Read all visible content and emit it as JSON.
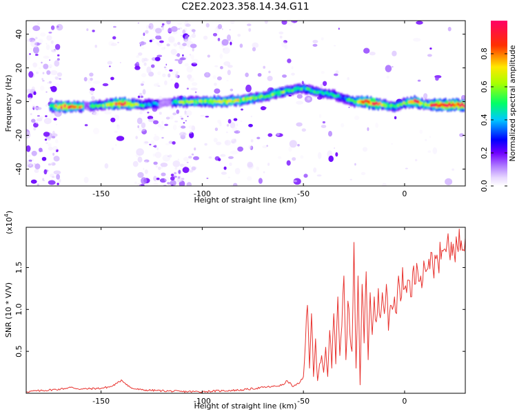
{
  "title": "C2E2.2023.358.14.34.G11",
  "colors": {
    "snr_line": "#e8322e",
    "spectrogram_base": "#9d5cf0",
    "colormap": [
      "#ffffff",
      "#e8d8ff",
      "#b07cff",
      "#7000ff",
      "#0000ff",
      "#00c8ff",
      "#00ff66",
      "#a8ff00",
      "#ffe800",
      "#ff3000",
      "#ff0066"
    ]
  },
  "chart_data": [
    {
      "type": "heatmap",
      "xlabel": "Height of straight line (km)",
      "ylabel": "Frequency (Hz)",
      "xlim": [
        -187,
        30
      ],
      "ylim": [
        -50,
        48
      ],
      "x_ticks": [
        -150,
        -100,
        -50,
        0
      ],
      "y_ticks": [
        -40,
        -20,
        0,
        20,
        40
      ],
      "grid": false,
      "colorbar": {
        "label": "Normalized spectral amplitude",
        "range": [
          0.0,
          1.0
        ],
        "ticks": [
          "0.0",
          "0.2",
          "0.4",
          "0.6",
          "0.8"
        ],
        "tick_values": [
          0.0,
          0.2,
          0.4,
          0.6,
          0.8
        ]
      },
      "ridge": {
        "x": [
          -185,
          -176,
          -170,
          -165,
          -160,
          -150,
          -140,
          -130,
          -120,
          -110,
          -100,
          -90,
          -80,
          -70,
          -60,
          -55,
          -50,
          -45,
          -40,
          -35,
          -30,
          -25,
          -20,
          -15,
          -10,
          -5,
          0,
          5,
          10,
          15,
          20,
          25,
          30
        ],
        "frequency": [
          -3,
          -3,
          -3,
          -3,
          -3,
          -2,
          -1,
          -2,
          -1,
          0,
          0,
          0,
          1,
          3,
          6,
          7,
          8,
          6,
          5,
          4,
          2,
          0,
          0,
          -1,
          -2,
          -3,
          -1,
          0,
          -2,
          -2,
          -2,
          -2,
          -2
        ],
        "amplitude": [
          0.2,
          0.5,
          0.85,
          0.85,
          0.7,
          0.5,
          0.95,
          0.5,
          0.4,
          0.6,
          0.6,
          0.7,
          0.65,
          0.6,
          0.6,
          0.5,
          0.5,
          0.5,
          0.45,
          0.5,
          0.4,
          0.6,
          0.85,
          0.95,
          0.6,
          0.55,
          0.6,
          0.9,
          0.6,
          0.95,
          0.95,
          0.95,
          0.95
        ]
      }
    },
    {
      "type": "line",
      "xlabel": "Height of straight line (km)",
      "ylabel": "SNR (10 * V/V)",
      "y_exponent_label": "(x10",
      "y_exponent_power": "4",
      "y_exponent_close": ")",
      "y_multiplier": 10000,
      "xlim": [
        -187,
        30
      ],
      "ylim": [
        0,
        1.98
      ],
      "x_ticks": [
        -150,
        -100,
        -50,
        0
      ],
      "y_ticks": [
        0.5,
        1.0,
        1.5
      ],
      "y_tick_labels": [
        "0.5",
        "1.0",
        "1.5"
      ],
      "grid": false,
      "series": [
        {
          "x": [
            -187,
            -180,
            -170,
            -165,
            -160,
            -150,
            -145,
            -142,
            -140,
            -138,
            -135,
            -130,
            -120,
            -110,
            -100,
            -90,
            -80,
            -70,
            -65,
            -60,
            -58,
            -55,
            -52,
            -50,
            -48,
            -47,
            -46,
            -45,
            -44,
            -43,
            -42,
            -41,
            -40,
            -39,
            -38,
            -37,
            -36,
            -35,
            -34,
            -33,
            -32,
            -31,
            -30,
            -29,
            -28,
            -27,
            -26,
            -25,
            -24,
            -23,
            -22,
            -21,
            -20,
            -19,
            -18,
            -17,
            -16,
            -15,
            -14,
            -13,
            -12,
            -11,
            -10,
            -9,
            -8,
            -7,
            -6,
            -5,
            -4,
            -3,
            -2,
            -1,
            0,
            1,
            2,
            3,
            4,
            5,
            6,
            8,
            10,
            12,
            14,
            16,
            18,
            20,
            22,
            24,
            26,
            28,
            30
          ],
          "values": [
            0.02,
            0.03,
            0.05,
            0.07,
            0.05,
            0.06,
            0.08,
            0.12,
            0.16,
            0.12,
            0.06,
            0.04,
            0.03,
            0.02,
            0.02,
            0.03,
            0.04,
            0.07,
            0.08,
            0.1,
            0.15,
            0.08,
            0.12,
            0.2,
            1.05,
            0.3,
            0.95,
            0.2,
            0.65,
            0.15,
            0.35,
            0.45,
            0.25,
            0.55,
            0.2,
            0.75,
            0.3,
            0.95,
            0.35,
            1.15,
            0.45,
            0.8,
            1.4,
            0.4,
            1.1,
            0.7,
            0.5,
            1.8,
            0.3,
            1.4,
            0.1,
            1.3,
            0.6,
            1.45,
            0.4,
            1.2,
            0.7,
            1.15,
            0.85,
            1.25,
            0.9,
            1.2,
            0.95,
            1.3,
            0.75,
            1.05,
            1.0,
            1.15,
            0.95,
            1.4,
            1.1,
            1.5,
            1.25,
            1.2,
            1.35,
            1.15,
            1.45,
            1.3,
            1.55,
            1.4,
            1.5,
            1.6,
            1.5,
            1.65,
            1.6,
            1.72,
            1.7,
            1.78,
            1.75,
            1.82,
            1.85
          ]
        }
      ]
    }
  ]
}
